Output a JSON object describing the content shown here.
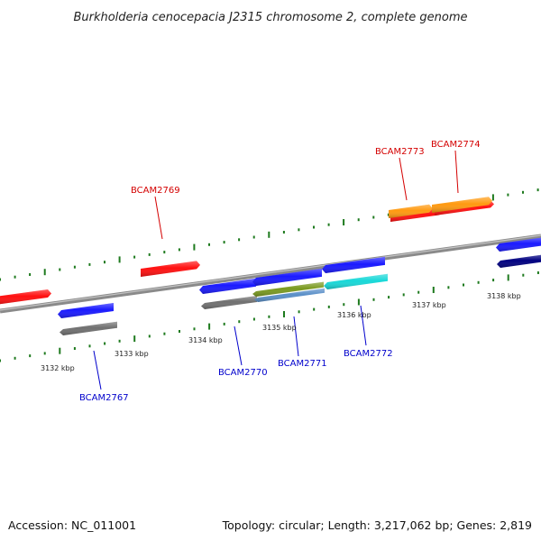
{
  "header": {
    "title": "Burkholderia cenocepacia J2315 chromosome 2, complete genome"
  },
  "footer": {
    "accession": "Accession: NC_011001",
    "summary": "Topology: circular; Length: 3,217,062 bp; Genes: 2,819"
  },
  "colors": {
    "backbone": "#8a8a8a",
    "tick": "#1e7a1e",
    "forward_label": "#d40000",
    "reverse_label": "#0000cc",
    "red": "#ff1010",
    "orange": "#ff9a10",
    "blue": "#1a1aff",
    "gray": "#707070",
    "olive": "#7a9a20",
    "steel": "#5a8fc8",
    "cyan": "#18d8d8",
    "navy": "#000080"
  },
  "scale_labels": [
    "3132 kbp",
    "3133 kbp",
    "3134 kbp",
    "3135 kbp",
    "3136 kbp",
    "3137 kbp",
    "3138 kbp"
  ],
  "gene_labels": {
    "forward": [
      "BCAM2769",
      "BCAM2773",
      "BCAM2774"
    ],
    "reverse": [
      "BCAM2767",
      "BCAM2770",
      "BCAM2771",
      "BCAM2772"
    ]
  },
  "features": [
    {
      "strand": "forward",
      "color": "red"
    },
    {
      "strand": "forward",
      "color": "red",
      "label": "BCAM2769"
    },
    {
      "strand": "forward",
      "color": "red",
      "label": "BCAM2773"
    },
    {
      "strand": "forward",
      "color": "red",
      "label": "BCAM2774"
    },
    {
      "strand": "forward",
      "color": "orange"
    },
    {
      "strand": "forward",
      "color": "orange"
    },
    {
      "strand": "reverse",
      "color": "blue",
      "label": "BCAM2767"
    },
    {
      "strand": "reverse",
      "color": "gray"
    },
    {
      "strand": "reverse",
      "color": "blue",
      "label": "BCAM2770"
    },
    {
      "strand": "reverse",
      "color": "gray"
    },
    {
      "strand": "reverse",
      "color": "blue"
    },
    {
      "strand": "reverse",
      "color": "olive",
      "label": "BCAM2771"
    },
    {
      "strand": "reverse",
      "color": "steel"
    },
    {
      "strand": "reverse",
      "color": "blue",
      "label": "BCAM2772"
    },
    {
      "strand": "reverse",
      "color": "cyan"
    },
    {
      "strand": "reverse",
      "color": "blue"
    },
    {
      "strand": "reverse",
      "color": "navy"
    }
  ]
}
